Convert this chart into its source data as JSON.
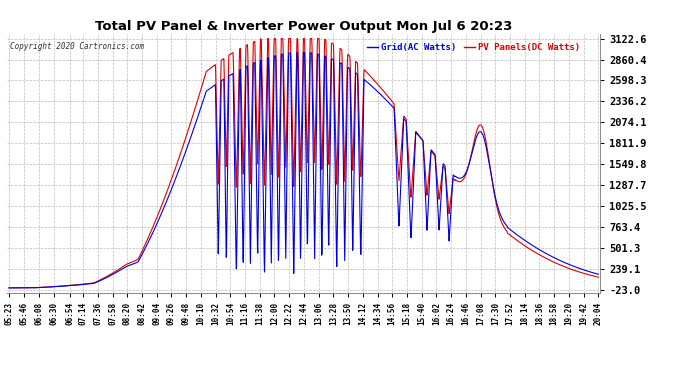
{
  "title": "Total PV Panel & Inverter Power Output Mon Jul 6 20:23",
  "copyright": "Copyright 2020 Cartronics.com",
  "legend_blue": "Grid(AC Watts)",
  "legend_red": "PV Panels(DC Watts)",
  "yticks": [
    -23.0,
    239.1,
    501.3,
    763.4,
    1025.5,
    1287.7,
    1549.8,
    1811.9,
    2074.1,
    2336.2,
    2598.3,
    2860.4,
    3122.6
  ],
  "ymin": -23.0,
  "ymax": 3122.6,
  "background_color": "#ffffff",
  "grid_color": "#bbbbbb",
  "title_color": "#000000",
  "blue_color": "#0000dd",
  "red_color": "#dd0000",
  "figwidth": 6.9,
  "figheight": 3.75,
  "dpi": 100,
  "xtick_labels": [
    "05:23",
    "05:46",
    "06:08",
    "06:30",
    "06:54",
    "07:14",
    "07:36",
    "07:58",
    "08:20",
    "08:42",
    "09:04",
    "09:26",
    "09:48",
    "10:10",
    "10:32",
    "10:54",
    "11:16",
    "11:38",
    "12:00",
    "12:22",
    "12:44",
    "13:06",
    "13:28",
    "13:50",
    "14:12",
    "14:34",
    "14:56",
    "15:18",
    "15:40",
    "16:02",
    "16:24",
    "16:46",
    "17:08",
    "17:30",
    "17:52",
    "18:14",
    "18:36",
    "18:58",
    "19:20",
    "19:42",
    "20:04"
  ]
}
